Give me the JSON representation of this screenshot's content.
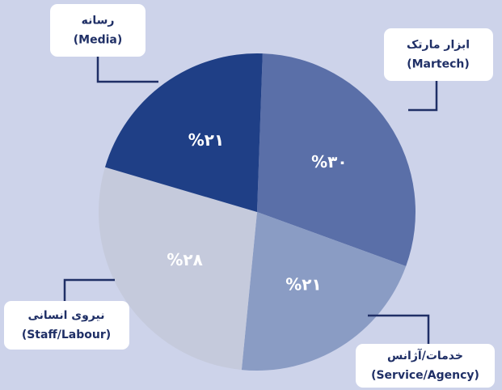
{
  "chart_data": {
    "type": "pie",
    "categories": [
      "ابزار مارتک",
      "خدمات/آژانس",
      "نیروی انسانی",
      "رسانه"
    ],
    "categories_en": [
      "(Martech)",
      "(Service/Agency)",
      "(Staff/Labour)",
      "(Media)"
    ],
    "values": [
      30,
      21,
      28,
      21
    ],
    "value_labels": [
      "%۳۰",
      "%۲۱",
      "%۲۸",
      "%۲۱"
    ],
    "colors": [
      "#5a6fa8",
      "#8a9cc4",
      "#c5cadc",
      "#1f3f86"
    ]
  }
}
